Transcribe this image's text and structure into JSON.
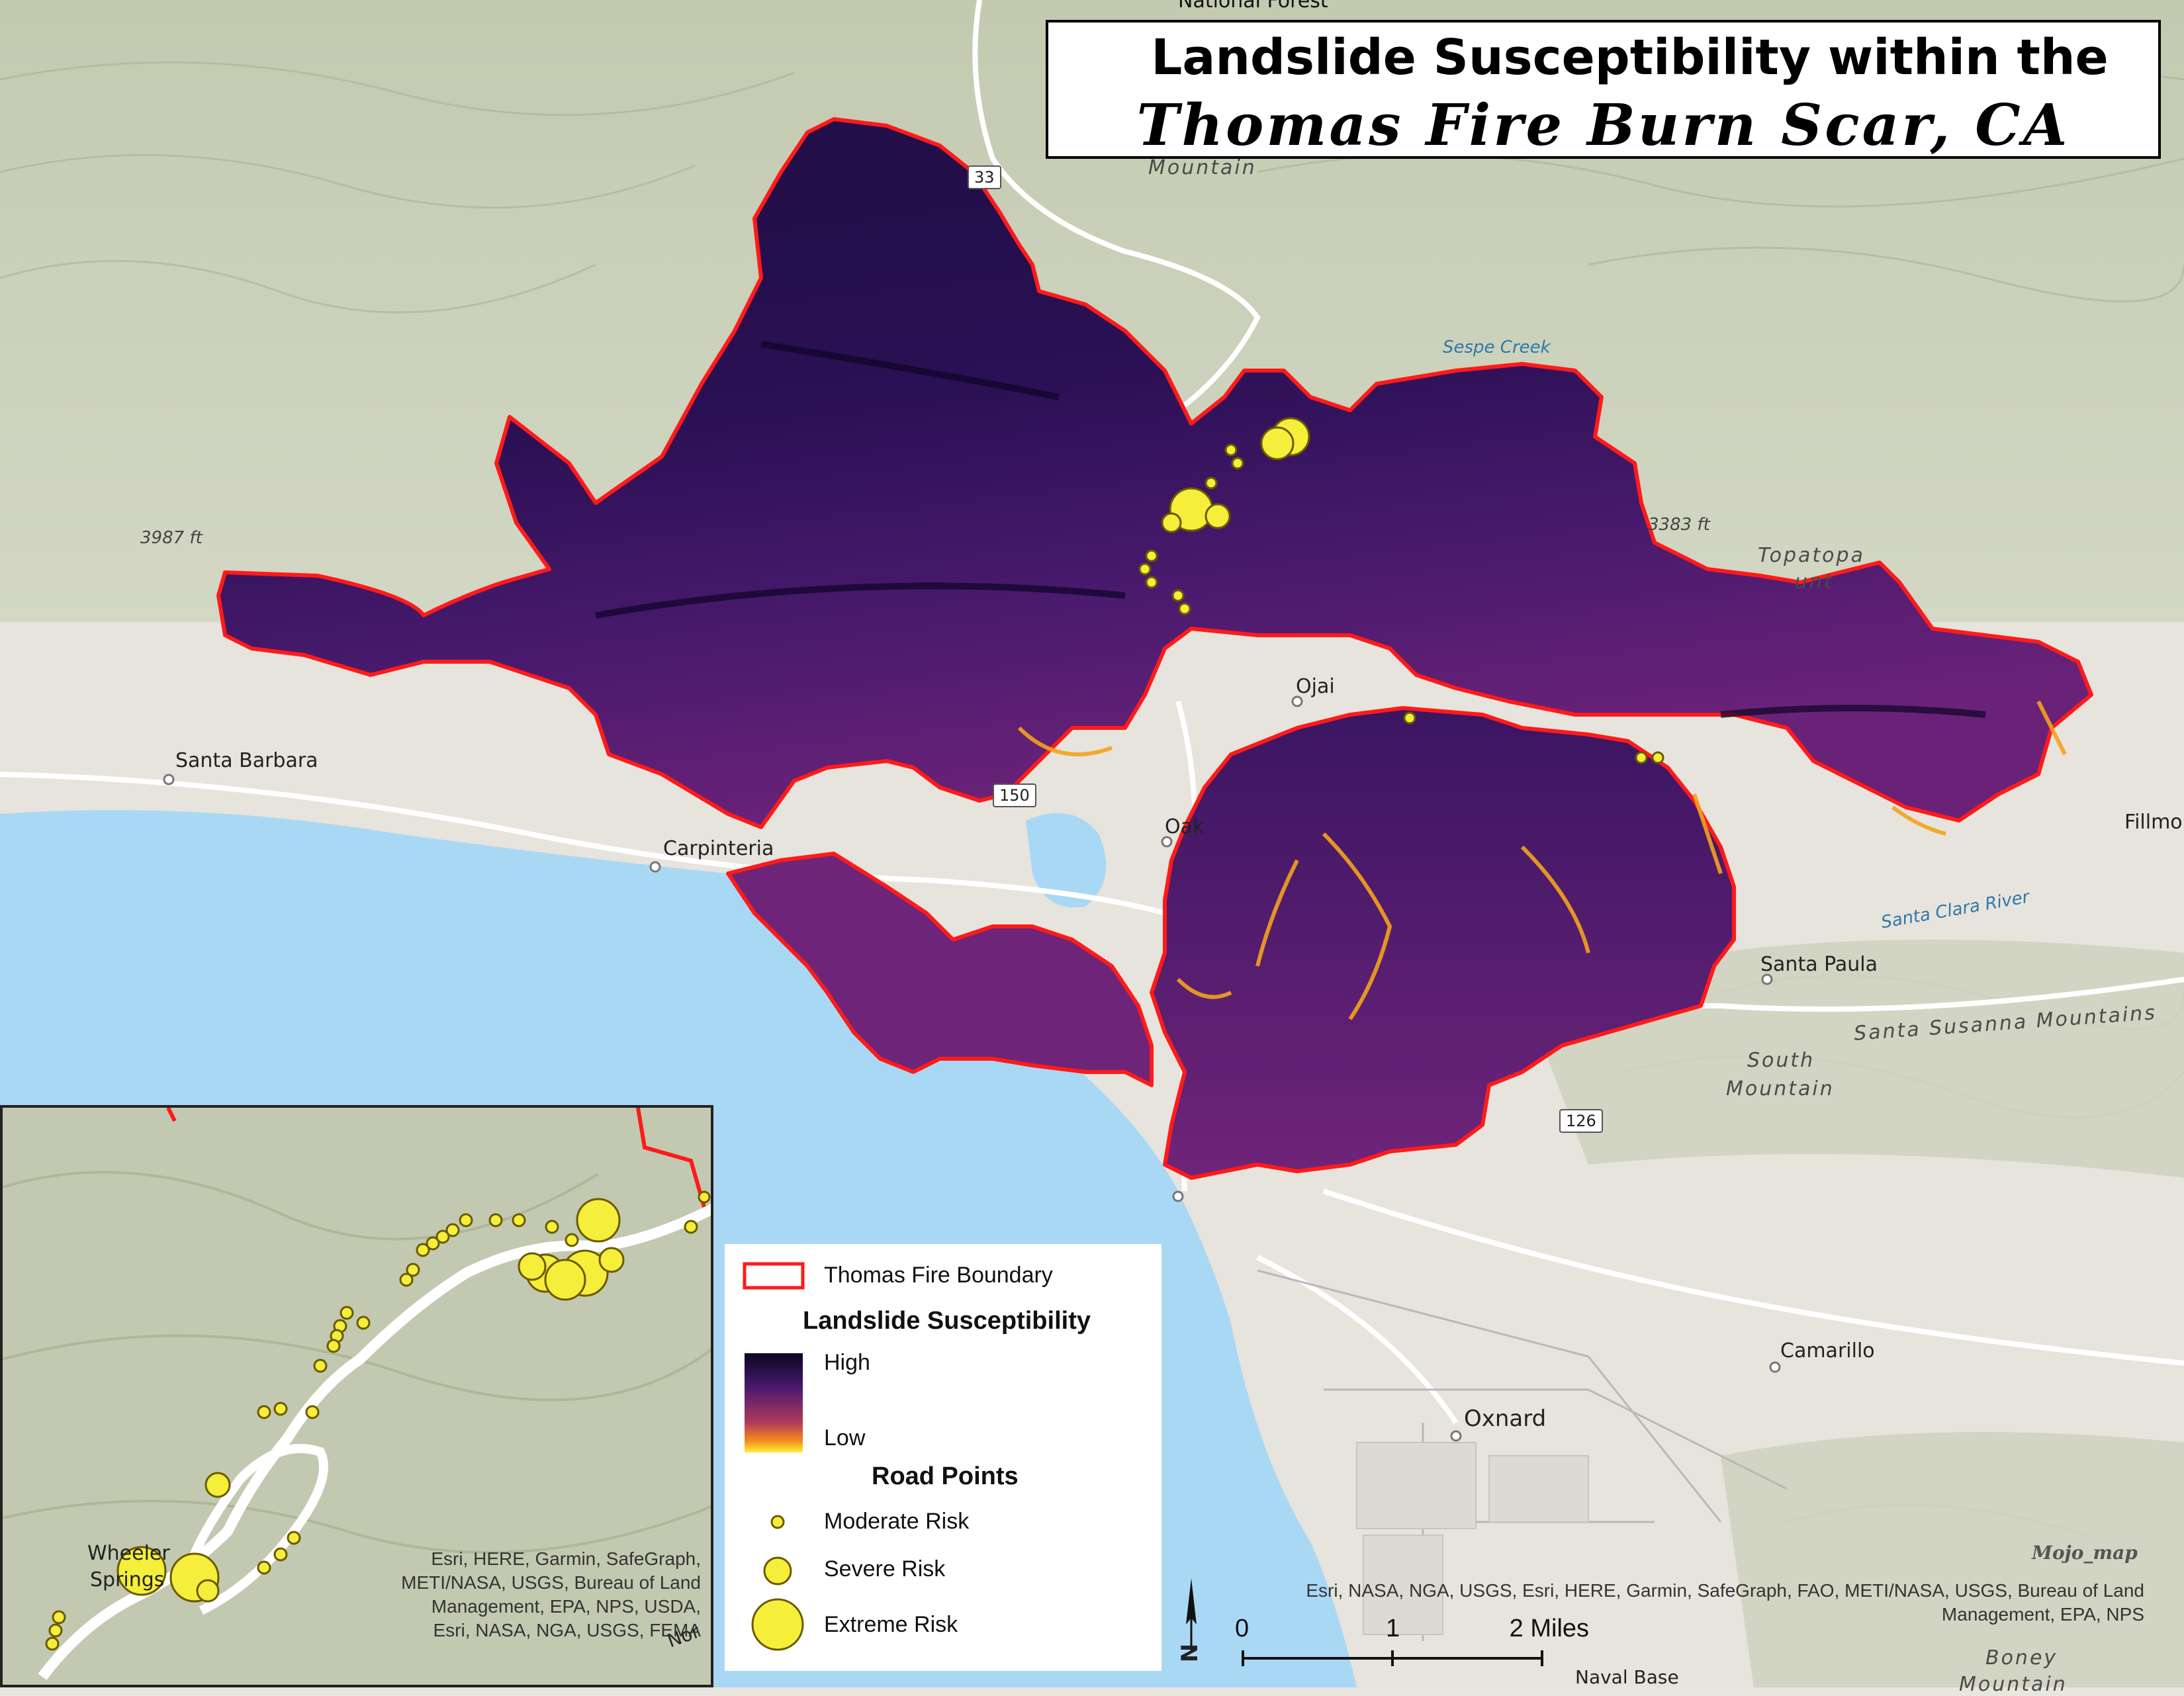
{
  "title": {
    "line1": "Landslide Susceptibility within the",
    "line2": "Thomas Fire Burn Scar, CA"
  },
  "colors": {
    "fire_boundary": "#ff1a1a",
    "susceptibility_high": "#1a0b3c",
    "susceptibility_mid": "#5a1f7a",
    "susceptibility_low": "#ffd23a",
    "road_point": "#f5ee3a",
    "ocean": "#a9d8f5",
    "terrain": "#c8ceb7"
  },
  "map_labels": {
    "national_forest": "National Forest",
    "mountain_top": "Mountain",
    "highway_33": "33",
    "highway_150": "150",
    "highway_126": "126",
    "sespe_creek": "Sespe Creek",
    "peak_3987": "3987 ft",
    "peak_3383": "3383 ft",
    "topatopa_1": "Topatopa",
    "topatopa_2": "unt",
    "santa_barbara": "Santa Barbara",
    "carpinteria": "Carpinteria",
    "ojai": "Ojai",
    "oak_view": "Oak",
    "fillmore": "Fillmo",
    "santa_clara_river": "Santa Clara River",
    "santa_paula": "Santa Paula",
    "santa_susanna": "Santa Susanna Mountains",
    "south_mountain_1": "South",
    "south_mountain_2": "Mountain",
    "camarillo": "Camarillo",
    "oxnard": "Oxnard",
    "naval_base": "Naval Base",
    "boney_1": "Boney",
    "boney_2": "Mountain"
  },
  "inset": {
    "town": "Wheeler",
    "town2": "Springs",
    "road_fragment": "Nor",
    "credit": "Esri, HERE, Garmin, SafeGraph, METI/NASA, USGS, Bureau of Land Management, EPA, NPS, USDA, Esri, NASA, NGA, USGS, FEMA"
  },
  "legend": {
    "boundary_label": "Thomas Fire Boundary",
    "susceptibility_heading": "Landslide Susceptibility",
    "high_label": "High",
    "low_label": "Low",
    "road_points_heading": "Road Points",
    "moderate_label": "Moderate Risk",
    "severe_label": "Severe Risk",
    "extreme_label": "Extreme Risk"
  },
  "credits": {
    "main": "Esri, NASA, NGA, USGS, Esri, HERE, Garmin, SafeGraph, FAO, METI/NASA, USGS, Bureau of Land Management, EPA, NPS"
  },
  "scale_bar": {
    "t0": "0",
    "t1": "1",
    "t2": "2 Miles"
  },
  "north_arrow": "N",
  "signature": "Mojo_map"
}
